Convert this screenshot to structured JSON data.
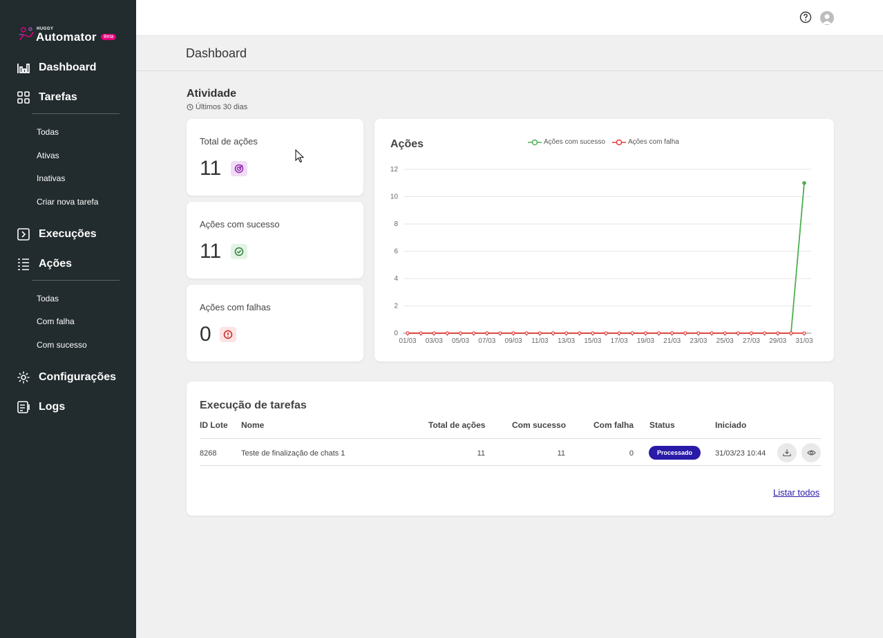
{
  "brand": {
    "small": "HUGGY",
    "name": "Automator",
    "badge": "Beta"
  },
  "sidebar": {
    "dashboard": "Dashboard",
    "tarefas": "Tarefas",
    "tarefas_items": [
      "Todas",
      "Ativas",
      "Inativas",
      "Criar nova tarefa"
    ],
    "execucoes": "Execuções",
    "acoes": "Ações",
    "acoes_items": [
      "Todas",
      "Com falha",
      "Com sucesso"
    ],
    "configuracoes": "Configurações",
    "logs": "Logs"
  },
  "page": {
    "title": "Dashboard"
  },
  "activity": {
    "title": "Atividade",
    "subtitle": "Últimos 30 dias",
    "stats": [
      {
        "label": "Total de ações",
        "value": "11"
      },
      {
        "label": "Ações com sucesso",
        "value": "11"
      },
      {
        "label": "Ações com falhas",
        "value": "0"
      }
    ]
  },
  "colors": {
    "success": "#4caf50",
    "failure": "#e53935",
    "accent": "#2a1aa8",
    "sidebar": "#222b2e"
  },
  "chart_data": {
    "type": "line",
    "title": "Ações",
    "categories": [
      "01/03",
      "02/03",
      "03/03",
      "04/03",
      "05/03",
      "06/03",
      "07/03",
      "08/03",
      "09/03",
      "10/03",
      "11/03",
      "12/03",
      "13/03",
      "14/03",
      "15/03",
      "16/03",
      "17/03",
      "18/03",
      "19/03",
      "20/03",
      "21/03",
      "22/03",
      "23/03",
      "24/03",
      "25/03",
      "26/03",
      "27/03",
      "28/03",
      "29/03",
      "30/03",
      "31/03"
    ],
    "x_tick_labels": [
      "01/03",
      "03/03",
      "05/03",
      "07/03",
      "09/03",
      "11/03",
      "13/03",
      "15/03",
      "17/03",
      "19/03",
      "21/03",
      "23/03",
      "25/03",
      "27/03",
      "29/03",
      "31/03"
    ],
    "y_ticks": [
      0,
      2,
      4,
      6,
      8,
      10,
      12
    ],
    "ylim": [
      0,
      12
    ],
    "grid": true,
    "legend_position": "top",
    "series": [
      {
        "name": "Ações com sucesso",
        "color": "#4caf50",
        "values": [
          0,
          0,
          0,
          0,
          0,
          0,
          0,
          0,
          0,
          0,
          0,
          0,
          0,
          0,
          0,
          0,
          0,
          0,
          0,
          0,
          0,
          0,
          0,
          0,
          0,
          0,
          0,
          0,
          0,
          0,
          11
        ]
      },
      {
        "name": "Ações com falha",
        "color": "#e53935",
        "values": [
          0,
          0,
          0,
          0,
          0,
          0,
          0,
          0,
          0,
          0,
          0,
          0,
          0,
          0,
          0,
          0,
          0,
          0,
          0,
          0,
          0,
          0,
          0,
          0,
          0,
          0,
          0,
          0,
          0,
          0,
          0
        ]
      }
    ]
  },
  "executions": {
    "title": "Execução de tarefas",
    "headers": {
      "id": "ID Lote",
      "name": "Nome",
      "total": "Total de ações",
      "success": "Com sucesso",
      "fail": "Com falha",
      "status": "Status",
      "started": "Iniciado"
    },
    "rows": [
      {
        "id": "8268",
        "name": "Teste de finalização de chats 1",
        "total": "11",
        "success": "11",
        "fail": "0",
        "status": "Processado",
        "started": "31/03/23 10:44"
      }
    ],
    "list_all": "Listar todos"
  }
}
